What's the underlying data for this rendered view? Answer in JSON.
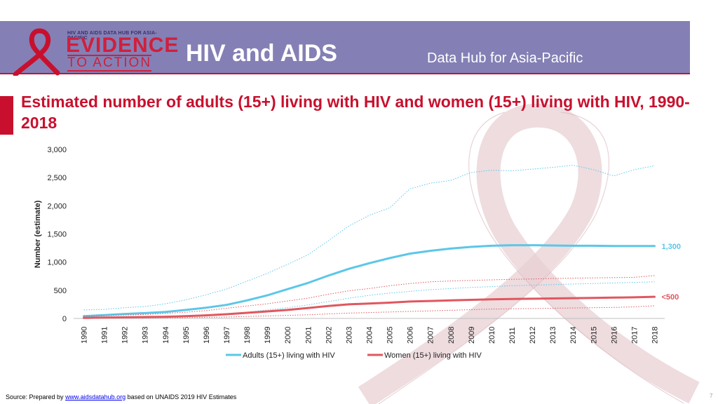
{
  "header": {
    "logo_small": "HIV AND AIDS DATA HUB FOR ASIA-PACIFIC",
    "logo_big": "EVIDENCE",
    "logo_sub": "TO ACTION",
    "title": "HIV and AIDS",
    "subtitle": "Data Hub for Asia-Pacific"
  },
  "colors": {
    "header_bg": "#8480b5",
    "accent": "#c8102e",
    "adults": "#5bc7e8",
    "women": "#e0575f"
  },
  "chart_data": {
    "type": "line",
    "title": "Estimated number of adults (15+) living with HIV and women (15+) living with HIV, 1990-2018",
    "ylabel": "Number (estimate)",
    "xlabel": "",
    "ylim": [
      0,
      3000
    ],
    "yticks": [
      "0",
      "500",
      "1,000",
      "1,500",
      "2,000",
      "2,500",
      "3,000"
    ],
    "ytick_values": [
      0,
      500,
      1000,
      1500,
      2000,
      2500,
      3000
    ],
    "categories": [
      "1990",
      "1991",
      "1992",
      "1993",
      "1994",
      "1995",
      "1996",
      "1997",
      "1998",
      "1999",
      "2000",
      "2001",
      "2002",
      "2003",
      "2004",
      "2005",
      "2006",
      "2007",
      "2008",
      "2009",
      "2010",
      "2011",
      "2012",
      "2013",
      "2014",
      "2015",
      "2016",
      "2017",
      "2018"
    ],
    "legend_position": "bottom",
    "series": [
      {
        "name": "Adults (15+) living with HIV",
        "color": "#5bc7e8",
        "values": [
          40,
          60,
          80,
          95,
          115,
          150,
          190,
          240,
          320,
          410,
          520,
          630,
          760,
          880,
          980,
          1070,
          1150,
          1200,
          1240,
          1270,
          1290,
          1300,
          1300,
          1295,
          1290,
          1290,
          1285,
          1285,
          1285
        ],
        "upper": [
          150,
          160,
          190,
          210,
          260,
          330,
          420,
          520,
          660,
          800,
          960,
          1130,
          1380,
          1640,
          1830,
          1960,
          2300,
          2400,
          2450,
          2590,
          2630,
          2620,
          2650,
          2680,
          2720,
          2640,
          2530,
          2640,
          2710
        ],
        "lower": [
          10,
          15,
          20,
          25,
          35,
          45,
          60,
          80,
          110,
          150,
          190,
          240,
          300,
          360,
          410,
          450,
          480,
          510,
          530,
          550,
          565,
          580,
          590,
          600,
          610,
          620,
          630,
          640,
          650
        ],
        "end_label": "1,300"
      },
      {
        "name": "Women (15+) living with HIV",
        "color": "#e0575f",
        "values": [
          10,
          15,
          20,
          25,
          30,
          40,
          55,
          75,
          100,
          125,
          150,
          185,
          220,
          250,
          265,
          280,
          300,
          310,
          320,
          330,
          340,
          345,
          350,
          355,
          360,
          365,
          370,
          375,
          385
        ],
        "upper": [
          40,
          50,
          60,
          70,
          90,
          110,
          140,
          180,
          220,
          260,
          310,
          360,
          430,
          490,
          530,
          580,
          620,
          650,
          665,
          675,
          685,
          695,
          700,
          710,
          715,
          720,
          725,
          730,
          760
        ],
        "lower": [
          5,
          6,
          8,
          10,
          12,
          15,
          20,
          25,
          35,
          45,
          55,
          65,
          80,
          95,
          105,
          115,
          125,
          135,
          145,
          155,
          165,
          170,
          175,
          180,
          185,
          190,
          195,
          205,
          225
        ],
        "end_label": "<500"
      }
    ]
  },
  "source": {
    "prefix": "Source: Prepared by ",
    "link": "www.aidsdatahub.org",
    "suffix": "  based on UNAIDS 2019 HIV Estimates"
  },
  "page_number": "7"
}
